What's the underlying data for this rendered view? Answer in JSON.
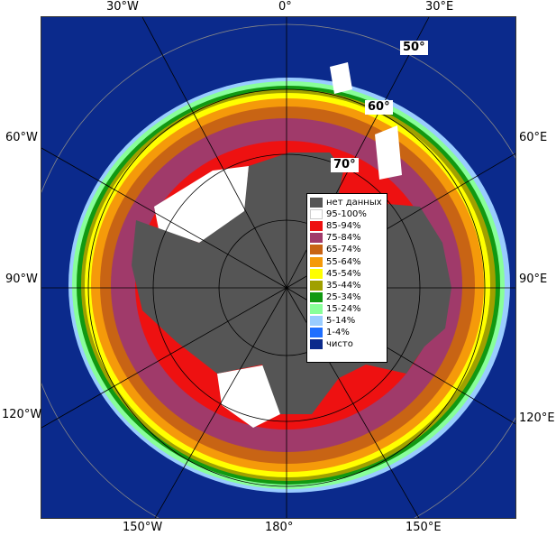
{
  "map": {
    "top_labels": [
      "30°W",
      "0°",
      "30°E"
    ],
    "bottom_labels": [
      "150°W",
      "180°",
      "150°E"
    ],
    "left_labels": [
      "60°W",
      "90°W",
      "120°W"
    ],
    "right_labels": [
      "60°E",
      "90°E",
      "120°E"
    ],
    "lat_labels": [
      "50°",
      "60°",
      "70°"
    ]
  },
  "legend": {
    "items": [
      {
        "label": "нет данных",
        "color": "#555555"
      },
      {
        "label": "95-100%",
        "color": "#ffffff"
      },
      {
        "label": "85-94%",
        "color": "#ee1111"
      },
      {
        "label": "75-84%",
        "color": "#a03a6a"
      },
      {
        "label": "65-74%",
        "color": "#c86414"
      },
      {
        "label": "55-64%",
        "color": "#f59a0a"
      },
      {
        "label": "45-54%",
        "color": "#ffff00"
      },
      {
        "label": "35-44%",
        "color": "#a0a000"
      },
      {
        "label": "25-34%",
        "color": "#119911"
      },
      {
        "label": "15-24%",
        "color": "#88ff99"
      },
      {
        "label": "5-14%",
        "color": "#99ccff"
      },
      {
        "label": "1-4%",
        "color": "#1f6fff"
      },
      {
        "label": "чисто",
        "color": "#0b2a8c"
      }
    ]
  }
}
